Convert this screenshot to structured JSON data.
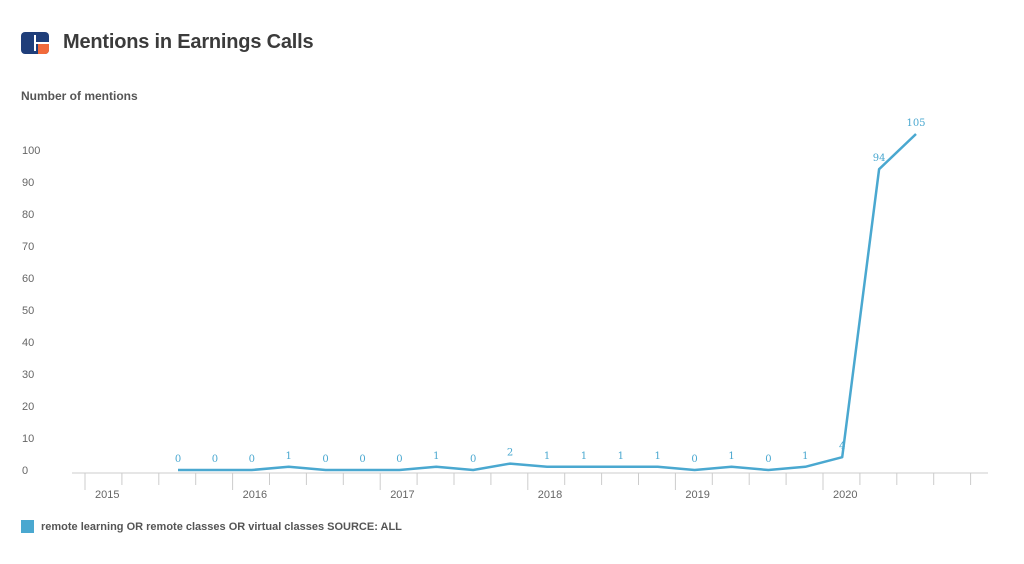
{
  "header": {
    "title": "Mentions in Earnings Calls",
    "logo_colors": [
      "#1f3e7a",
      "#f26a3a"
    ]
  },
  "chart_data": {
    "type": "line",
    "title": "Mentions in Earnings Calls",
    "ylabel": "Number of mentions",
    "xlabel": "",
    "ylim": [
      0,
      100
    ],
    "y_ticks": [
      0,
      10,
      20,
      30,
      40,
      50,
      60,
      70,
      80,
      90,
      100
    ],
    "year_labels": [
      "2015",
      "2016",
      "2017",
      "2018",
      "2019",
      "2020"
    ],
    "x": [
      "2015-Q3",
      "2015-Q4",
      "2016-Q1",
      "2016-Q2",
      "2016-Q3",
      "2016-Q4",
      "2017-Q1",
      "2017-Q2",
      "2017-Q3",
      "2017-Q4",
      "2018-Q1",
      "2018-Q2",
      "2018-Q3",
      "2018-Q4",
      "2019-Q1",
      "2019-Q2",
      "2019-Q3",
      "2019-Q4",
      "2020-Q1",
      "2020-Q2",
      "2020-Q3"
    ],
    "series": [
      {
        "name": "remote learning OR remote classes OR virtual classes SOURCE: ALL",
        "color": "#4aa8d0",
        "values": [
          0,
          0,
          0,
          1,
          0,
          0,
          0,
          1,
          0,
          2,
          1,
          1,
          1,
          1,
          0,
          1,
          0,
          1,
          4,
          94,
          105
        ],
        "data_labels": [
          "0",
          "0",
          "0",
          "1",
          "0",
          "0",
          "0",
          "1",
          "0",
          "2",
          "1",
          "1",
          "1",
          "1",
          "0",
          "1",
          "0",
          "1",
          "4",
          "94",
          "105"
        ]
      }
    ],
    "grid": false,
    "legend_position": "bottom-left"
  }
}
